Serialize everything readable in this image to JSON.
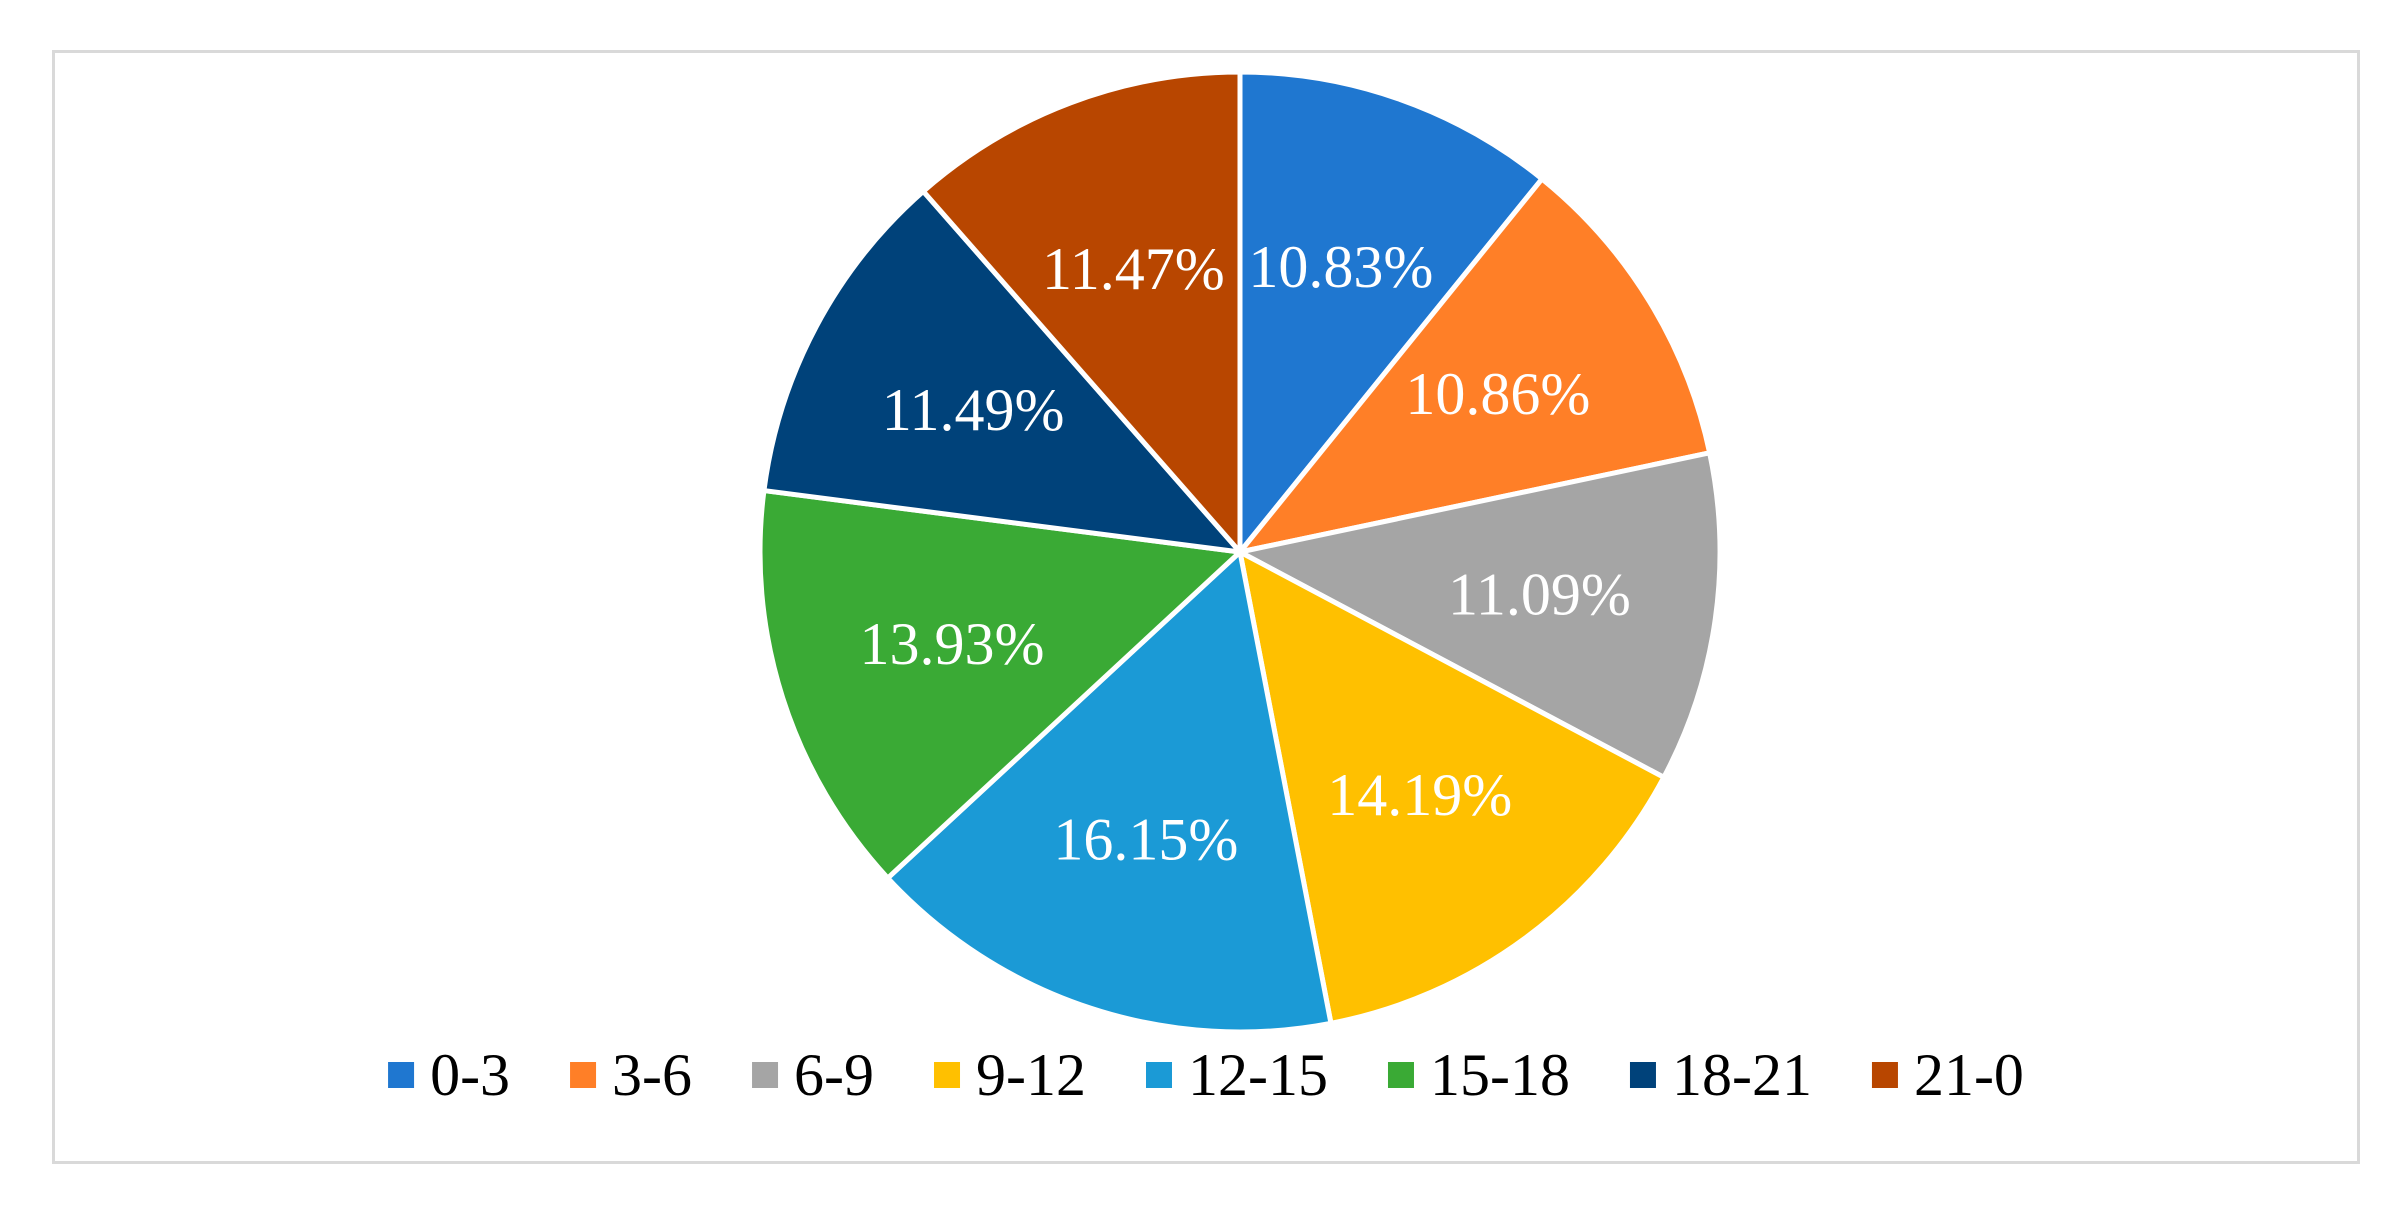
{
  "chart_data": {
    "type": "pie",
    "title": "",
    "legend_position": "bottom",
    "categories": [
      "0-3",
      "3-6",
      "6-9",
      "9-12",
      "12-15",
      "15-18",
      "18-21",
      "21-0"
    ],
    "values": [
      10.83,
      10.86,
      11.09,
      14.19,
      16.15,
      13.93,
      11.49,
      11.47
    ],
    "data_labels": [
      "10.83%",
      "10.86%",
      "11.09%",
      "14.19%",
      "16.15%",
      "13.93%",
      "11.49%",
      "11.47%"
    ],
    "colors": [
      "#1f77d0",
      "#ff7f27",
      "#a5a5a5",
      "#ffc000",
      "#1b9ad6",
      "#3aaa35",
      "#00427a",
      "#b84600"
    ]
  }
}
